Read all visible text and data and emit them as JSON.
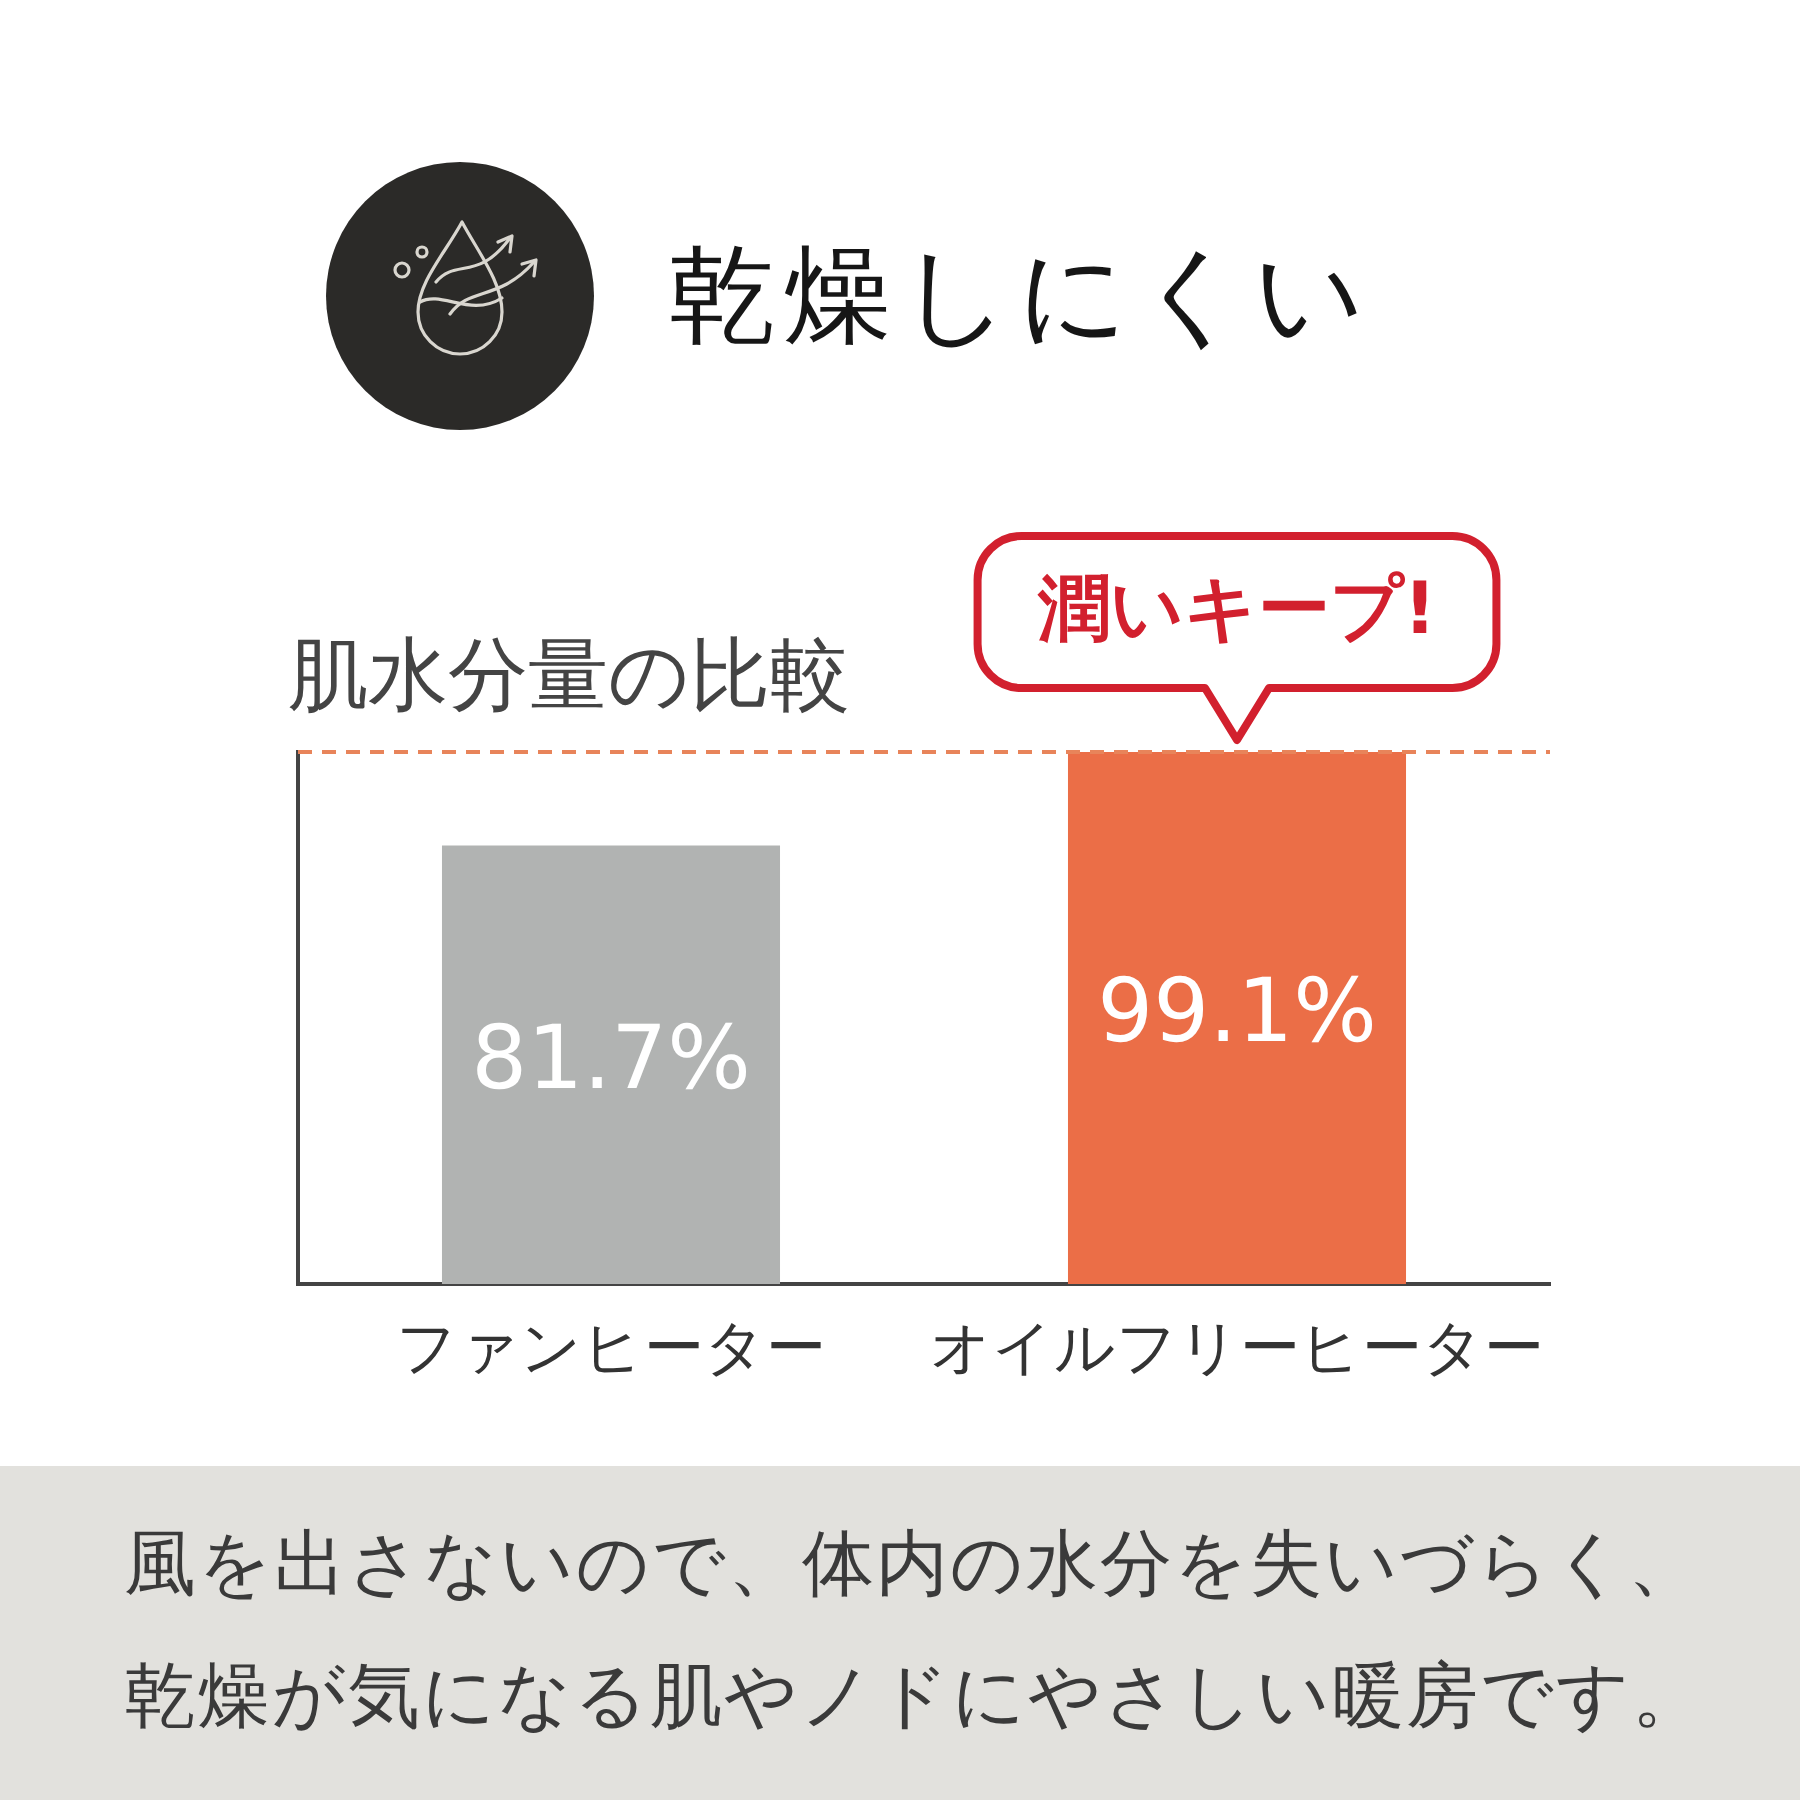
{
  "chart_data": {
    "type": "bar",
    "title": "乾燥しにくい",
    "subtitle": "肌水分量の比較",
    "categories": [
      "ファンヒーター",
      "オイルフリーヒーター"
    ],
    "values": [
      81.7,
      99.1
    ],
    "colors": [
      "#b1b3b2",
      "#eb6e47"
    ],
    "value_labels": [
      "81.7%",
      "99.1%"
    ],
    "tick_labels": "x",
    "ref_lines": [
      {
        "axis": "y",
        "value": 99.1,
        "color": "#e8845a",
        "line_style": "dashed"
      }
    ],
    "annotations": [
      {
        "text": "潤いキープ!",
        "x": "オイルフリーヒーター",
        "y": 99.1
      },
      "風を出さないので、体内の水分を失いづらく、乾燥が気になる肌やノドにやさしい暖房です。"
    ]
  }
}
